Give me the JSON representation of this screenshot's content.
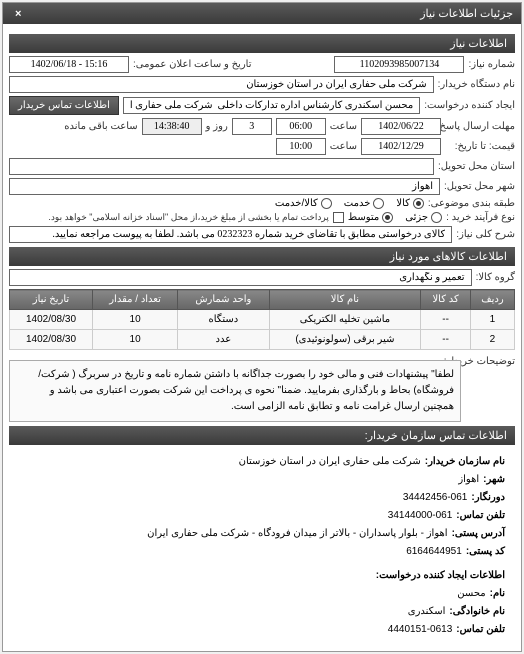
{
  "header": {
    "title": "جزئیات اطلاعات نیاز",
    "close": "×"
  },
  "info": {
    "section_title": "اطلاعات نیاز",
    "req_number_label": "شماره نیاز:",
    "req_number": "1102093985007134",
    "public_announce_label": "تاریخ و ساعت اعلان عمومی:",
    "public_announce": "1402/06/18 - 15:16",
    "buyer_org_label": "نام دستگاه خریدار:",
    "buyer_org": "شرکت ملی حفاری ایران در استان خوزستان",
    "creator_label": "ایجاد کننده درخواست:",
    "creator": "محسن اسکندری کارشناس اداره تدارکات داخلی  شرکت ملی حفاری ایران در",
    "contact_btn": "اطلاعات تماس خریدار",
    "deadline_label": "مهلت ارسال پاسخ: تا تاریخ:",
    "deadline_date": "1402/06/22",
    "time_label": "ساعت",
    "deadline_time": "06:00",
    "days_label": "روز و",
    "days": "3",
    "remain_time": "14:38:40",
    "remain_label": "ساعت باقی مانده",
    "until_label": "قیمت: تا تاریخ:",
    "until_date": "1402/12/29",
    "until_time": "10:00",
    "delivery_state_label": "استان محل تحویل:",
    "delivery_city_label": "شهر محل تحویل:",
    "delivery_city": "اهواز",
    "packaging_label": "طبقه بندی موضوعی:",
    "pkg_opt1": "کالا",
    "pkg_opt2": "خدمت",
    "pkg_opt3": "کالا/خدمت",
    "process_label": "نوع فرآیند خرید :",
    "proc_opt1": "جزئی",
    "proc_opt2": "متوسط",
    "process_note": "پرداخت تمام یا بخشی از مبلغ خرید،از محل \"اسناد خزانه اسلامی\" خواهد بود.",
    "subject_label": "شرح کلی نیاز:",
    "subject": "کالای درخواستی مطابق با تقاضای خرید شماره 0232323 می باشد. لطفا به پیوست مراجعه نمایید."
  },
  "items": {
    "section_title": "اطلاعات کالاهای مورد نیاز",
    "group_label": "گروه کالا:",
    "group": "تعمیر و نگهداری",
    "cols": [
      "ردیف",
      "کد کالا",
      "نام کالا",
      "واحد شمارش",
      "تعداد / مقدار",
      "تاریخ نیاز"
    ],
    "rows": [
      [
        "1",
        "--",
        "ماشین تخلیه الکتریکی",
        "دستگاه",
        "10",
        "1402/08/30"
      ],
      [
        "2",
        "--",
        "شیر برقی (سولونوئیدی)",
        "عدد",
        "10",
        "1402/08/30"
      ]
    ]
  },
  "buyer_desc": {
    "label": "توضیحات خریدار:",
    "text": "لطفا\" پیشنهادات فنی و مالی خود را بصورت جداگانه با داشتن شماره نامه و تاریخ در سربرگ ( شرکت/ فروشگاه) بحاط و بارگذاری بفرمایید. ضمنا\" نحوه ی پرداخت این شرکت بصورت اعتباری می باشد و همچنین ارسال غرامت نامه و تطابق نامه الزامی است."
  },
  "contact": {
    "section_title": "اطلاعات تماس سازمان خریدار:",
    "org_label": "نام سازمان خریدار:",
    "org": "شرکت ملی حفاری ایران در استان خوزستان",
    "city_label": "شهر:",
    "city": "اهواز",
    "fax_label": "دورنگار:",
    "fax": "34442456-061",
    "phone_label": "تلفن تماس:",
    "phone": "34144000-061",
    "address_label": "آدرس پستی:",
    "address": "اهواز - بلوار پاسداران - بالاتر از میدان فرودگاه - شرکت ملی حفاری ایران",
    "postal_label": "کد پستی:",
    "postal": "6164644951",
    "creator_section": "اطلاعات ایجاد کننده درخواست:",
    "fname_label": "نام:",
    "fname": "محسن",
    "lname_label": "نام خانوادگی:",
    "lname": "اسکندری",
    "cphone_label": "تلفن تماس:",
    "cphone": "4440151-0613"
  }
}
